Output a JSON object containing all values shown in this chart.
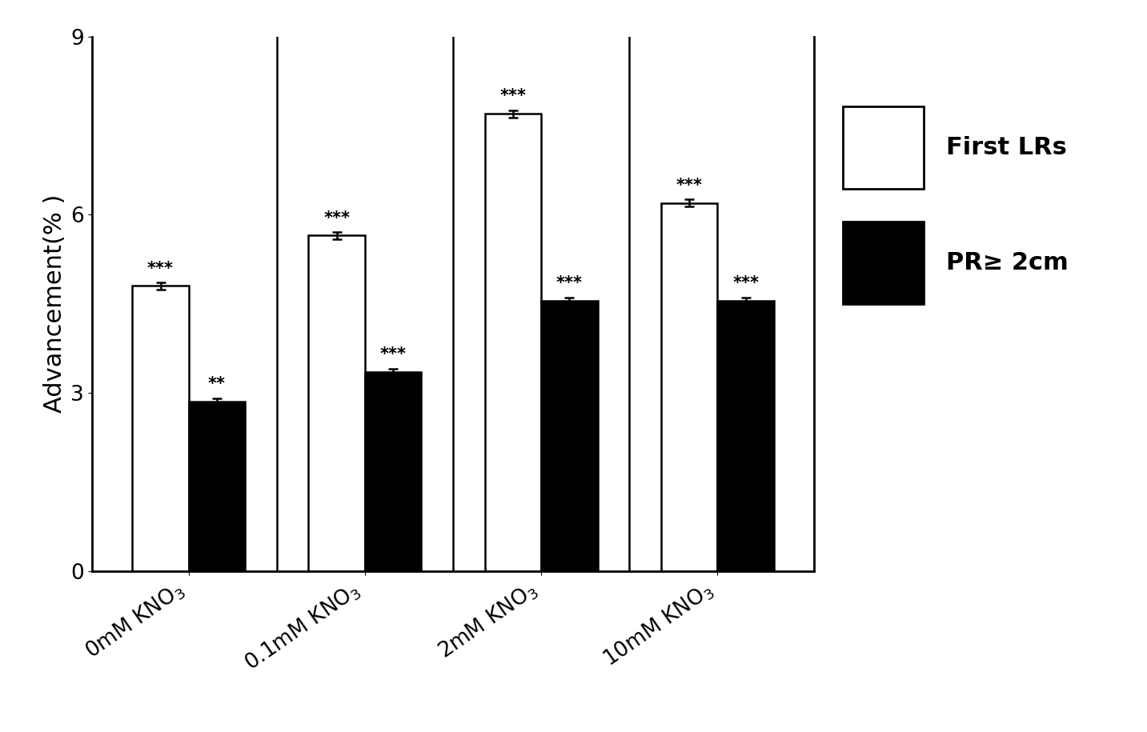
{
  "groups": [
    "0mM KNO$_3$",
    "0.1mM KNO$_3$",
    "2mM KNO$_3$",
    "10mM KNO$_3$"
  ],
  "first_LRs": [
    4.8,
    5.65,
    7.7,
    6.2
  ],
  "PR_ge_2cm": [
    2.85,
    3.35,
    4.55,
    4.55
  ],
  "first_LRs_err": [
    0.06,
    0.06,
    0.06,
    0.06
  ],
  "PR_ge_2cm_err": [
    0.06,
    0.06,
    0.06,
    0.06
  ],
  "first_LRs_sig": [
    "***",
    "***",
    "***",
    "***"
  ],
  "PR_ge_2cm_sig": [
    "**",
    "***",
    "***",
    "***"
  ],
  "ylabel": "Advancement(% )",
  "yticks": [
    0,
    3,
    6,
    9
  ],
  "ylim": [
    0,
    9
  ],
  "legend_labels": [
    "First LRs",
    "PR≥ 2cm"
  ],
  "bar_width": 0.32,
  "white_bar_color": "#ffffff",
  "black_bar_color": "#000000",
  "bar_edge_color": "#000000",
  "background_color": "#ffffff",
  "sig_fontsize": 15,
  "ylabel_fontsize": 22,
  "tick_fontsize": 19,
  "legend_fontsize": 22,
  "group_positions": [
    0,
    1,
    2,
    3
  ]
}
